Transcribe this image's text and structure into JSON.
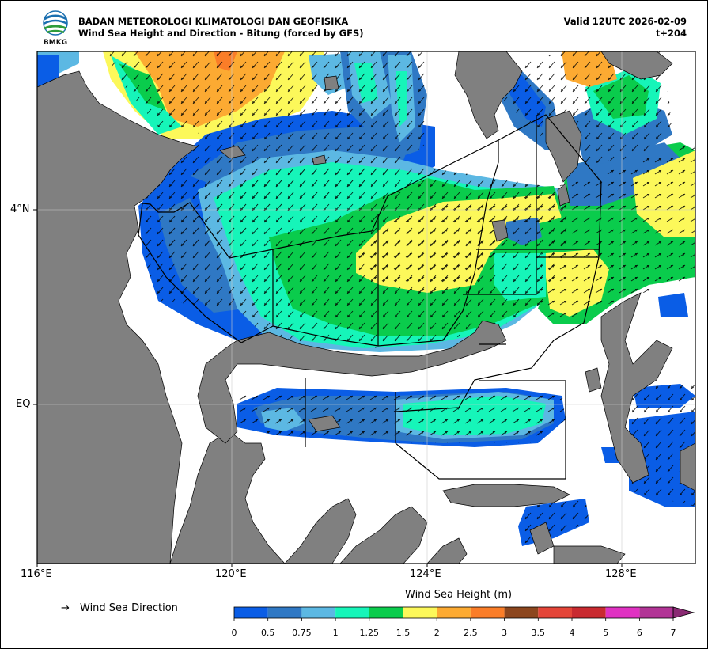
{
  "header": {
    "logo_text": "BMKG",
    "title_line1": "BADAN METEOROLOGI KLIMATOLOGI DAN GEOFISIKA",
    "title_line2": "Wind Sea Height and Direction - Bitung (forced by GFS)",
    "valid": "Valid 12UTC 2026-02-09",
    "timestep": "t+204"
  },
  "map": {
    "lon_range": [
      116,
      130
    ],
    "lat_range": [
      -3.2,
      5.1
    ],
    "lon_labels": [
      "116°E",
      "120°E",
      "124°E",
      "128°E"
    ],
    "lat_labels": [
      "4°N",
      "EQ"
    ],
    "land_color": "#808080",
    "sea_color": "#ffffff",
    "grid": true
  },
  "legend": {
    "arrow_symbol": "→",
    "direction_label": "Wind Sea Direction"
  },
  "colorbar": {
    "title": "Wind Sea Height (m)",
    "ticks": [
      "0",
      "0.5",
      "0.75",
      "1",
      "1.25",
      "1.5",
      "2",
      "2.5",
      "3",
      "3.5",
      "4",
      "5",
      "6",
      "7"
    ],
    "colors": [
      "#0a5de6",
      "#2f78c4",
      "#5cb8e3",
      "#16f5b9",
      "#0acc4c",
      "#fcf85a",
      "#fcaa32",
      "#fa7d28",
      "#8c461e",
      "#e44538",
      "#c92a30",
      "#e032c2",
      "#b23496"
    ],
    "extend_color": "#8a2a73"
  }
}
